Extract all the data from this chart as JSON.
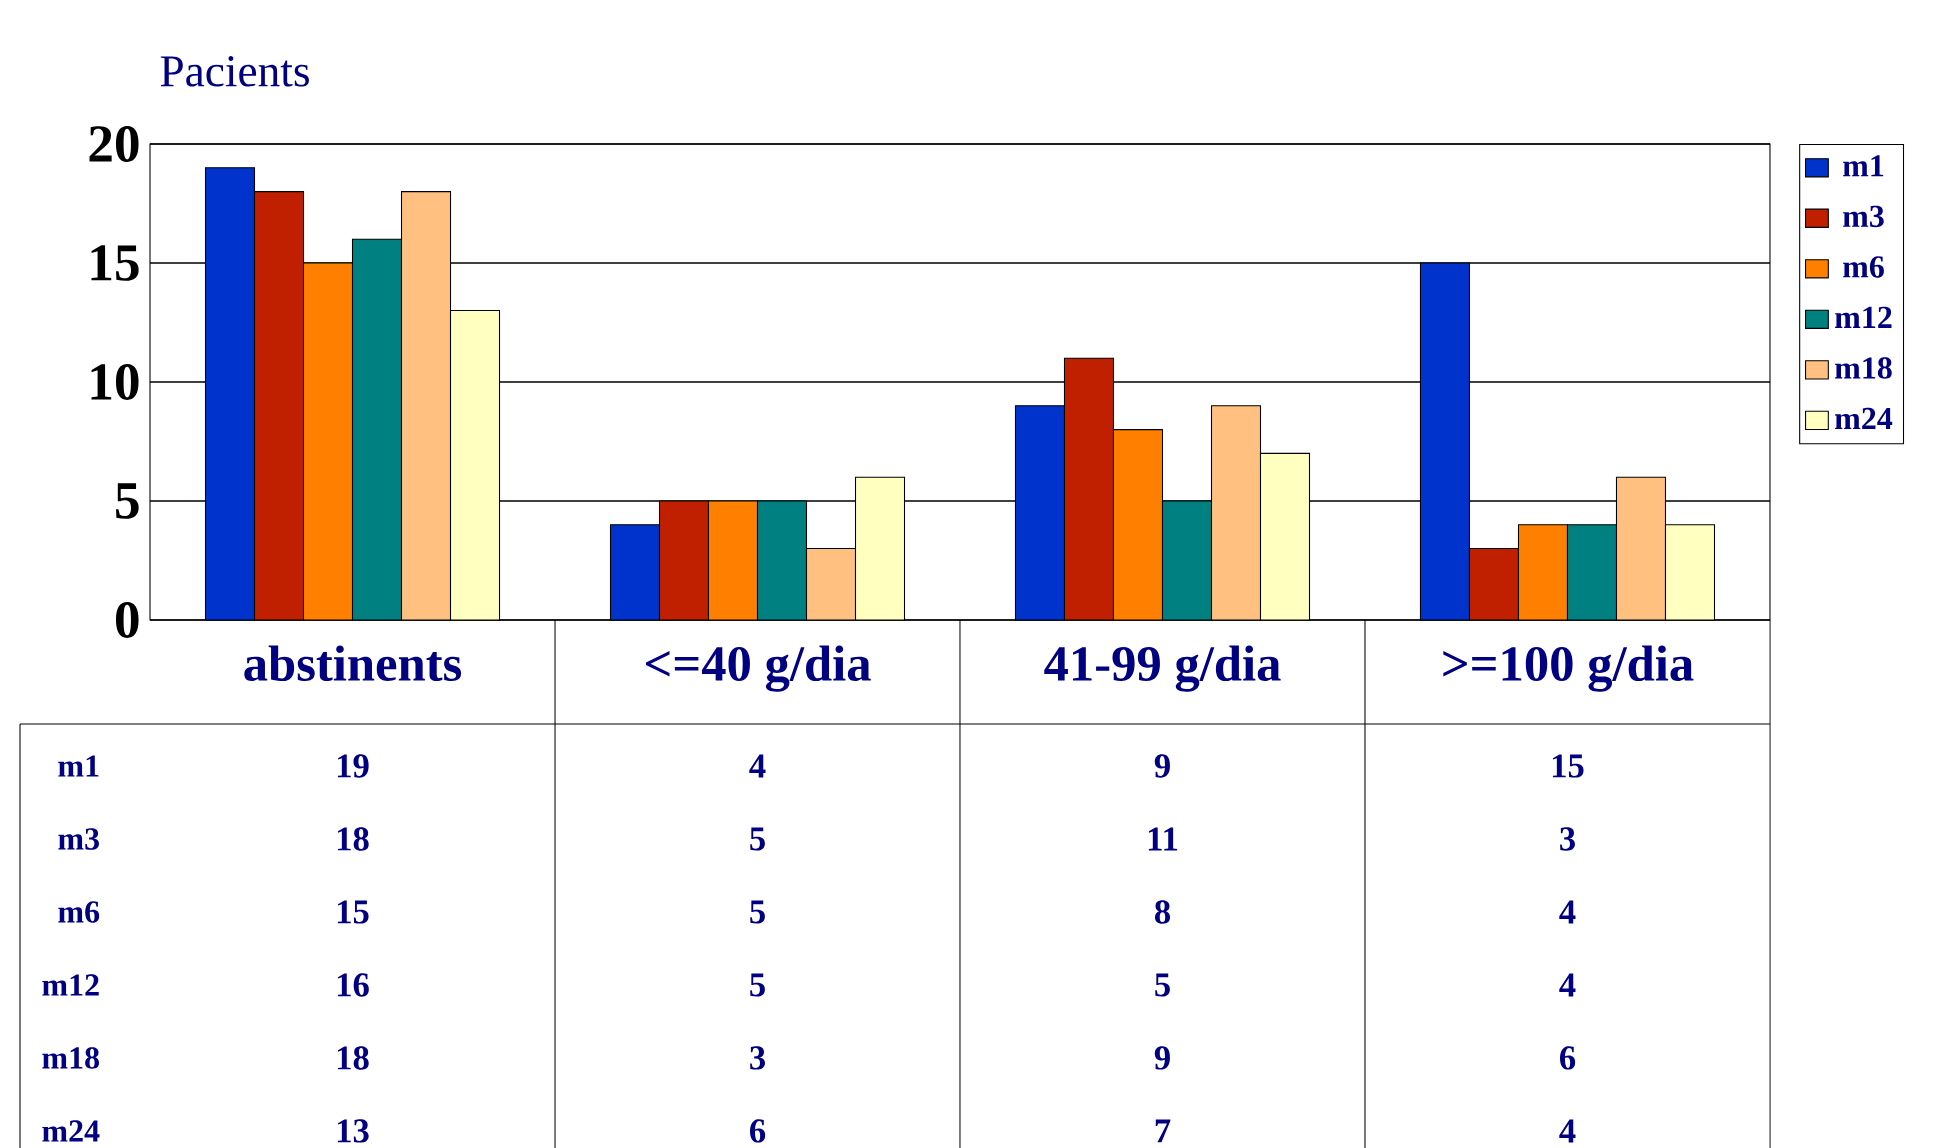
{
  "chart_data": {
    "type": "bar",
    "ylabel": "Pacients",
    "categories": [
      "abstinents",
      "<=40 g/dia",
      "41-99 g/dia",
      ">=100 g/dia"
    ],
    "series": [
      {
        "name": "m1",
        "color": "#0033cc",
        "values": [
          19,
          4,
          9,
          15
        ]
      },
      {
        "name": "m3",
        "color": "#c02000",
        "values": [
          18,
          5,
          11,
          3
        ]
      },
      {
        "name": "m6",
        "color": "#ff8000",
        "values": [
          15,
          5,
          8,
          4
        ]
      },
      {
        "name": "m12",
        "color": "#008080",
        "values": [
          16,
          5,
          5,
          4
        ]
      },
      {
        "name": "m18",
        "color": "#ffc080",
        "values": [
          18,
          3,
          9,
          6
        ]
      },
      {
        "name": "m24",
        "color": "#ffffc0",
        "values": [
          13,
          6,
          7,
          4
        ]
      }
    ],
    "ylim": [
      0,
      20
    ],
    "yticks": [
      0,
      5,
      10,
      15,
      20
    ],
    "grid": "y",
    "legend": "right",
    "data_labels": true
  }
}
